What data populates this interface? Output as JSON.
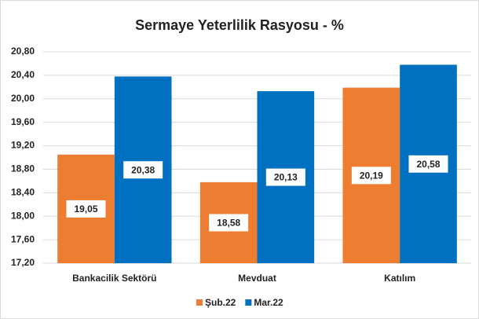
{
  "chart_data": {
    "type": "bar",
    "title": "Sermaye Yeterlilik Rasyosu - %",
    "categories": [
      "Bankacilik Sektörü",
      "Mevduat",
      "Katılım"
    ],
    "series": [
      {
        "name": "Şub.22",
        "color": "#ed7d31",
        "values": [
          19.05,
          18.58,
          20.19
        ],
        "value_labels": [
          "19,05",
          "18,58",
          "20,19"
        ]
      },
      {
        "name": "Mar.22",
        "color": "#0070c0",
        "values": [
          20.38,
          20.13,
          20.58
        ],
        "value_labels": [
          "20,38",
          "20,13",
          "20,58"
        ]
      }
    ],
    "ylim": [
      17.2,
      20.8
    ],
    "yticks": [
      {
        "value": 17.2,
        "label": "17,20"
      },
      {
        "value": 17.6,
        "label": "17,60"
      },
      {
        "value": 18.0,
        "label": "18,00"
      },
      {
        "value": 18.4,
        "label": "18,40"
      },
      {
        "value": 18.8,
        "label": "18,80"
      },
      {
        "value": 19.2,
        "label": "19,20"
      },
      {
        "value": 19.6,
        "label": "19,60"
      },
      {
        "value": 20.0,
        "label": "20,00"
      },
      {
        "value": 20.4,
        "label": "20,40"
      },
      {
        "value": 20.8,
        "label": "20,80"
      }
    ],
    "grid": true,
    "legend": "bottom"
  }
}
